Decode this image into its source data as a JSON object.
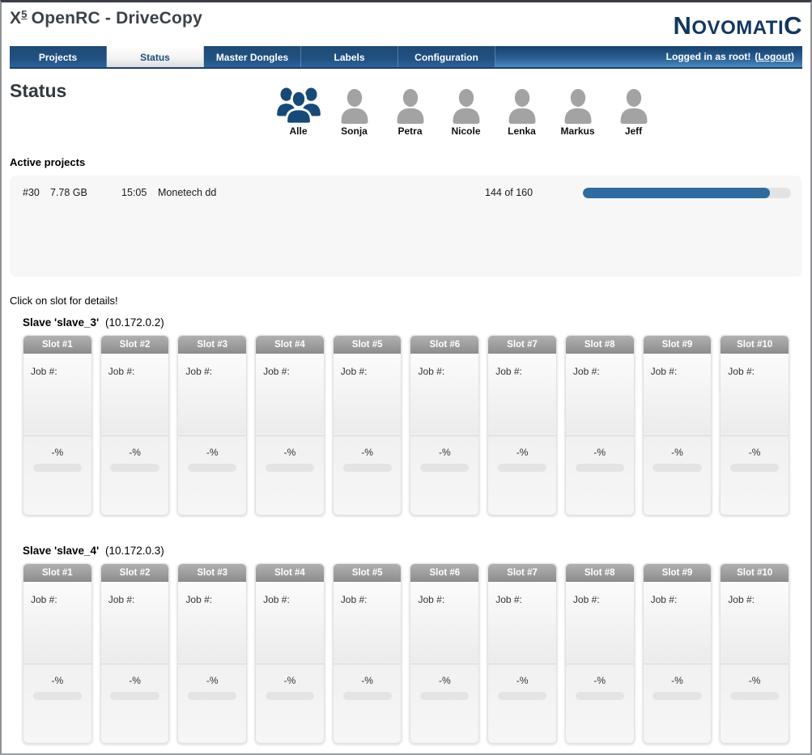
{
  "header": {
    "title": {
      "prefix": "X",
      "sup": "5",
      "rest": "OpenRC - DriveCopy"
    },
    "logo": {
      "first": "N",
      "middle": "OVOMATI",
      "last": "C"
    }
  },
  "nav": {
    "tabs": [
      {
        "label": "Projects",
        "active": false
      },
      {
        "label": "Status",
        "active": true
      },
      {
        "label": "Master Dongles",
        "active": false
      },
      {
        "label": "Labels",
        "active": false
      },
      {
        "label": "Configuration",
        "active": false
      }
    ],
    "session": {
      "message": "Logged in as root!",
      "paren_open": "(",
      "logout_label": "Logout",
      "paren_close": ")"
    }
  },
  "main": {
    "heading": "Status",
    "active_projects_label": "Active projects",
    "slots_hint": "Click on slot for details!"
  },
  "users": [
    {
      "name": "Alle",
      "icon": "group-icon",
      "selected": true
    },
    {
      "name": "Sonja",
      "icon": "person-icon",
      "selected": false
    },
    {
      "name": "Petra",
      "icon": "person-icon",
      "selected": false
    },
    {
      "name": "Nicole",
      "icon": "person-icon",
      "selected": false
    },
    {
      "name": "Lenka",
      "icon": "person-icon",
      "selected": false
    },
    {
      "name": "Markus",
      "icon": "person-icon",
      "selected": false
    },
    {
      "name": "Jeff",
      "icon": "person-icon",
      "selected": false
    }
  ],
  "active_projects": {
    "rows": [
      {
        "id": "#30",
        "size": "7.78 GB",
        "time": "15:05",
        "name": "Monetech dd",
        "progress_text": "144 of 160",
        "progress_percent": 90
      }
    ]
  },
  "slaves": [
    {
      "label": "Slave 'slave_3'",
      "ip": "(10.172.0.2)"
    },
    {
      "label": "Slave 'slave_4'",
      "ip": "(10.172.0.3)"
    }
  ],
  "slot_template": {
    "titles": [
      "Slot #1",
      "Slot #2",
      "Slot #3",
      "Slot #4",
      "Slot #5",
      "Slot #6",
      "Slot #7",
      "Slot #8",
      "Slot #9",
      "Slot #10"
    ],
    "job_label": "Job #:",
    "percent_placeholder": "-%"
  },
  "colors": {
    "nav_blue_dark": "#16416b",
    "nav_blue_light": "#4c89bd",
    "accent_blue": "#1d4d7c",
    "progress_fill": "#2e6b9e",
    "logo_navy": "#133760",
    "avatar_gray": "#a3a3a3",
    "avatar_active_navy": "#174a77",
    "slot_header_gray": "#8e8e8e"
  }
}
